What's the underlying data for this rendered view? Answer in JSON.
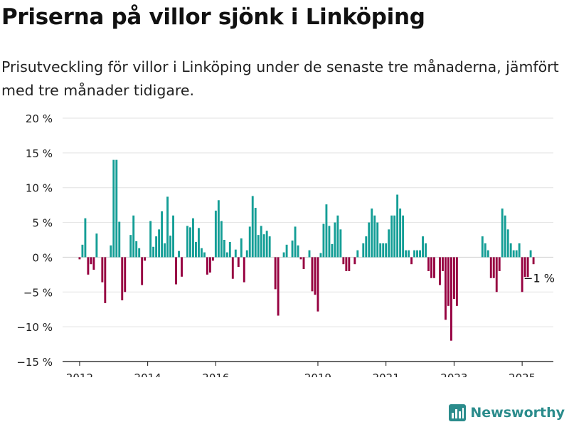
{
  "title": "Priserna på villor sjönk i Linköping",
  "subtitle": "Prisutveckling för villor i Linköping under de senaste tre månaderna, jämfört med tre månader tidigare.",
  "brand": {
    "name": "Newsworthy",
    "icon": "bar-chart-logo-icon"
  },
  "colors": {
    "positive": "#149e96",
    "negative": "#960040",
    "grid": "#e2e2e2",
    "axis": "#111111"
  },
  "chart_data": {
    "type": "bar",
    "title": "Priserna på villor sjönk i Linköping",
    "subtitle": "Prisutveckling för villor i Linköping under de senaste tre månaderna, jämfört med tre månader tidigare.",
    "xlabel": "",
    "ylabel": "",
    "unit": "%",
    "ylim": [
      -15,
      20
    ],
    "yticks": [
      20,
      15,
      10,
      5,
      0,
      -5,
      -10,
      -15
    ],
    "ytick_labels": [
      "20 %",
      "15 %",
      "10 %",
      "5 %",
      "0 %",
      "−5 %",
      "−10 %",
      "−15 %"
    ],
    "xlim": [
      "2011-07",
      "2025-12"
    ],
    "xticks": [
      {
        "x": "2012-01",
        "label": "2012"
      },
      {
        "x": "2014-01",
        "label": "2014"
      },
      {
        "x": "2016-01",
        "label": "2016"
      },
      {
        "x": "2019-01",
        "label": "2019"
      },
      {
        "x": "2021-01",
        "label": "2021"
      },
      {
        "x": "2023-01",
        "label": "2023"
      },
      {
        "x": "2025-01",
        "label": "2025"
      }
    ],
    "grid": true,
    "annotation": {
      "x": "2025-03",
      "label": "−1 %"
    },
    "series": [
      {
        "start": "2012-01",
        "values": [
          -0.3,
          1.8,
          5.6,
          -2.5,
          -1,
          -1.8,
          3.4,
          0,
          -3.6,
          -6.6,
          0,
          1.7,
          14,
          14,
          5.1,
          -6.2,
          -5,
          0,
          3.2,
          6,
          2.3,
          1.3,
          -4,
          -0.5,
          0,
          5.2,
          1.5,
          3,
          4,
          6.6,
          2,
          8.7,
          3.1,
          6,
          -3.9,
          0.9,
          -2.8,
          0,
          4.5,
          4.3,
          5.6,
          2.2,
          4.2,
          1.3,
          0.7,
          -2.5,
          -2.2,
          -0.5,
          6.7,
          8.2,
          5.2,
          2.5,
          0.7,
          2.2,
          -3.1,
          1.1,
          -1.4,
          2.7,
          -3.6,
          1,
          4.4,
          8.8,
          7.1,
          3.2,
          4.5,
          3.3,
          3.8,
          3,
          0,
          -4.6,
          -8.4,
          0,
          0.7,
          1.8,
          0,
          2.4,
          4.4,
          1.7,
          -0.3,
          -1.7,
          0,
          1,
          -4.9,
          -5.4,
          -7.8,
          0.6,
          4.8,
          7.6,
          4.5,
          1.9,
          5,
          6,
          4,
          -1,
          -2,
          -2,
          0,
          -1,
          1,
          0,
          2,
          3,
          5,
          7,
          6,
          5,
          2,
          2,
          2,
          4,
          6,
          6,
          9,
          7,
          6,
          1,
          1,
          -1,
          1,
          1,
          1,
          3,
          2,
          -2,
          -3,
          -3,
          0,
          -4,
          -2,
          -9,
          -7,
          -12,
          -6,
          -7,
          0,
          0,
          0,
          0,
          0,
          0,
          0,
          0,
          3,
          2,
          1,
          -3,
          -3,
          -5,
          -2,
          7,
          6,
          4,
          2,
          1,
          1,
          2,
          -5,
          -3,
          -3,
          1,
          -1
        ]
      }
    ]
  }
}
